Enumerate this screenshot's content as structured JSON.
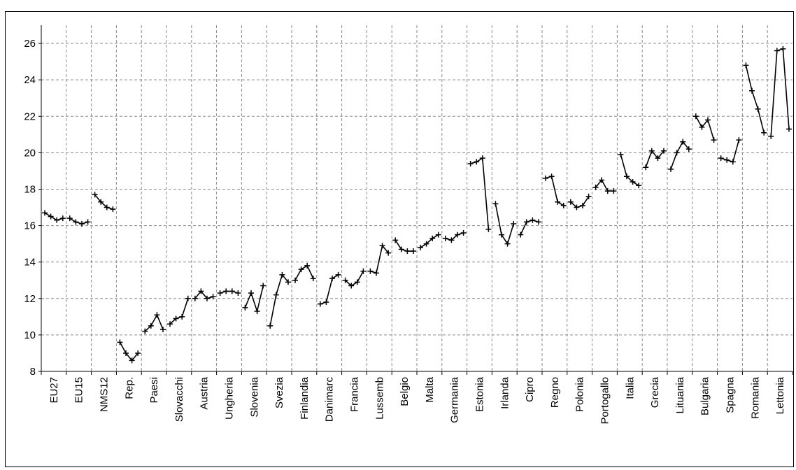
{
  "caption": "",
  "chart_data": {
    "type": "line",
    "title": "",
    "xlabel": "",
    "ylabel": "",
    "ylim": [
      8,
      27
    ],
    "yticks": [
      8,
      10,
      12,
      14,
      16,
      18,
      20,
      22,
      24,
      26
    ],
    "grid": true,
    "legend": "none",
    "marker": "cross",
    "line_color": "#000000",
    "categories": [
      "EU27",
      "EU15",
      "NMS12",
      "Rep.",
      "Paesi",
      "Slovacchi",
      "Austria",
      "Ungheria",
      "Slovenia",
      "Svezia",
      "Finlandia",
      "Danimarc",
      "Francia",
      "Lussemb",
      "Belgio",
      "Malta",
      "Germania",
      "Estonia",
      "Irlanda",
      "Cipro",
      "Regno",
      "Polonia",
      "Portogallo",
      "Italia",
      "Grecia",
      "Lituania",
      "Bulgaria",
      "Spagna",
      "Romania",
      "Lettonia"
    ],
    "groups": [
      {
        "category": "EU27",
        "values": [
          16.7,
          16.5,
          16.3,
          16.4
        ]
      },
      {
        "category": "EU15",
        "values": [
          16.4,
          16.2,
          16.1,
          16.2
        ]
      },
      {
        "category": "NMS12",
        "values": [
          17.7,
          17.3,
          17.0,
          16.9
        ]
      },
      {
        "category": "Rep.",
        "values": [
          9.6,
          9.0,
          8.6,
          9.0
        ]
      },
      {
        "category": "Paesi",
        "values": [
          10.2,
          10.5,
          11.1,
          10.3
        ]
      },
      {
        "category": "Slovacchi",
        "values": [
          10.6,
          10.9,
          11.0,
          12.0
        ]
      },
      {
        "category": "Austria",
        "values": [
          12.0,
          12.4,
          12.0,
          12.1
        ]
      },
      {
        "category": "Ungheria",
        "values": [
          12.3,
          12.4,
          12.4,
          12.3
        ]
      },
      {
        "category": "Slovenia",
        "values": [
          11.5,
          12.3,
          11.3,
          12.7
        ]
      },
      {
        "category": "Svezia",
        "values": [
          10.5,
          12.2,
          13.3,
          12.9
        ]
      },
      {
        "category": "Finlandia",
        "values": [
          13.0,
          13.6,
          13.8,
          13.1
        ]
      },
      {
        "category": "Danimarc",
        "values": [
          11.7,
          11.8,
          13.1,
          13.3
        ]
      },
      {
        "category": "Francia",
        "values": [
          13.0,
          12.7,
          12.9,
          13.5
        ]
      },
      {
        "category": "Lussemb",
        "values": [
          13.5,
          13.4,
          14.9,
          14.5
        ]
      },
      {
        "category": "Belgio",
        "values": [
          15.2,
          14.7,
          14.6,
          14.6
        ]
      },
      {
        "category": "Malta",
        "values": [
          14.8,
          15.0,
          15.3,
          15.5
        ]
      },
      {
        "category": "Germania",
        "values": [
          15.3,
          15.2,
          15.5,
          15.6
        ]
      },
      {
        "category": "Estonia",
        "values": [
          19.4,
          19.5,
          19.7,
          15.8
        ]
      },
      {
        "category": "Irlanda",
        "values": [
          17.2,
          15.5,
          15.0,
          16.1
        ]
      },
      {
        "category": "Cipro",
        "values": [
          15.5,
          16.2,
          16.3,
          16.2
        ]
      },
      {
        "category": "Regno",
        "values": [
          18.6,
          18.7,
          17.3,
          17.1
        ]
      },
      {
        "category": "Polonia",
        "values": [
          17.3,
          17.0,
          17.1,
          17.6
        ]
      },
      {
        "category": "Portogallo",
        "values": [
          18.1,
          18.5,
          17.9,
          17.9
        ]
      },
      {
        "category": "Italia",
        "values": [
          19.9,
          18.7,
          18.4,
          18.2
        ]
      },
      {
        "category": "Grecia",
        "values": [
          19.2,
          20.1,
          19.7,
          20.1
        ]
      },
      {
        "category": "Lituania",
        "values": [
          19.1,
          20.0,
          20.6,
          20.2
        ]
      },
      {
        "category": "Bulgaria",
        "values": [
          22.0,
          21.4,
          21.8,
          20.7
        ]
      },
      {
        "category": "Spagna",
        "values": [
          19.7,
          19.6,
          19.5,
          20.7
        ]
      },
      {
        "category": "Romania",
        "values": [
          24.8,
          23.4,
          22.4,
          21.1
        ]
      },
      {
        "category": "Lettonia",
        "values": [
          20.9,
          25.6,
          25.7,
          21.3
        ]
      }
    ]
  }
}
